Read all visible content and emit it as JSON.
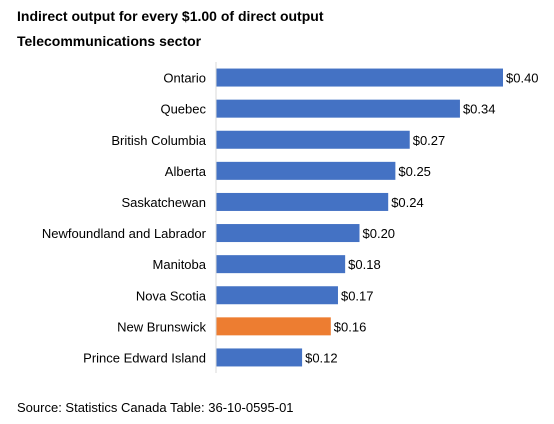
{
  "chart_data": {
    "type": "bar",
    "orientation": "horizontal",
    "title": "Indirect output for every $1.00 of direct output",
    "subtitle": "Telecommunications sector",
    "categories": [
      "Ontario",
      "Quebec",
      "British Columbia",
      "Alberta",
      "Saskatchewan",
      "Newfoundland and Labrador",
      "Manitoba",
      "Nova Scotia",
      "New Brunswick",
      "Prince Edward Island"
    ],
    "values": [
      0.4,
      0.34,
      0.27,
      0.25,
      0.24,
      0.2,
      0.18,
      0.17,
      0.16,
      0.12
    ],
    "data_labels": [
      "$0.40",
      "$0.34",
      "$0.27",
      "$0.25",
      "$0.24",
      "$0.20",
      "$0.18",
      "$0.17",
      "$0.16",
      "$0.12"
    ],
    "bar_colors": [
      "#4472C4",
      "#4472C4",
      "#4472C4",
      "#4472C4",
      "#4472C4",
      "#4472C4",
      "#4472C4",
      "#4472C4",
      "#ED7D31",
      "#4472C4"
    ],
    "xlim": [
      0,
      0.4
    ],
    "grid": false,
    "legend": "none"
  },
  "source": "Source: Statistics Canada Table: 36-10-0595-01"
}
